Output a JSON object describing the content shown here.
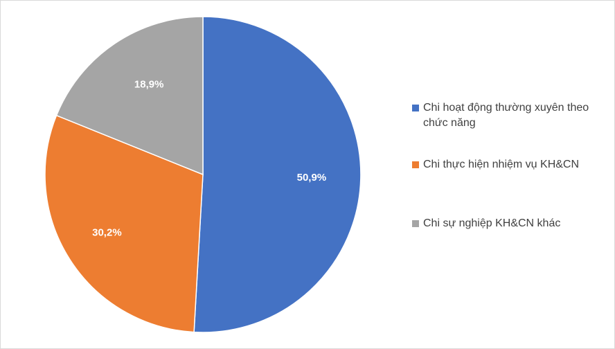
{
  "chart_data": {
    "type": "pie",
    "title": "",
    "categories": [
      "Chi hoạt động thường xuyên theo chức năng",
      "Chi thực hiện nhiệm vụ KH&CN",
      "Chi sự nghiệp KH&CN khác"
    ],
    "values": [
      50.9,
      30.2,
      18.9
    ],
    "data_labels": [
      "50,9%",
      "30,2%",
      "18,9%"
    ],
    "colors": [
      "#4472C4",
      "#ED7D31",
      "#A5A5A5"
    ],
    "start_angle_deg": 0,
    "direction": "clockwise",
    "legend_placement": "right"
  }
}
